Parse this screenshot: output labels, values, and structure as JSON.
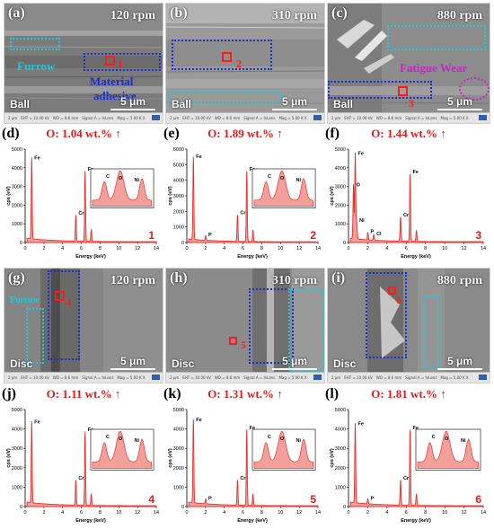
{
  "sem_top": [
    {
      "panel": "(a)",
      "rpm": "120 rpm",
      "bottom_word": "Ball",
      "scale": "5 μm",
      "marker": "1",
      "annotations": {
        "furrow": "Furrow",
        "adhesive_line1": "Material",
        "adhesive_line2": "adhesive"
      }
    },
    {
      "panel": "(b)",
      "rpm": "310 rpm",
      "bottom_word": "Ball",
      "scale": "5 μm",
      "marker": "2"
    },
    {
      "panel": "(c)",
      "rpm": "880 rpm",
      "bottom_word": "Ball",
      "scale": "5 μm",
      "marker": "3",
      "annotations": {
        "fatigue": "Fatigue Wear"
      }
    }
  ],
  "sem_bottom": [
    {
      "panel": "(g)",
      "rpm": "120 rpm",
      "bottom_word": "Disc",
      "scale": "5 μm",
      "marker": "4",
      "annotations": {
        "furrow": "Furrow"
      }
    },
    {
      "panel": "(h)",
      "rpm": "310 rpm",
      "bottom_word": "Disc",
      "scale": "5 μm",
      "marker": "5"
    },
    {
      "panel": "(i)",
      "rpm": "880 rpm",
      "bottom_word": "Disc",
      "scale": "5 μm",
      "marker": "6"
    }
  ],
  "infostrip": {
    "scale": "2 μm",
    "eht": "EHT = 10.00 kV",
    "wd": "WD = 8.6 mm",
    "signal": "Signal A = InLens",
    "mag": "Mag = 5.00 K X"
  },
  "colors": {
    "spectrum": "#e8302b",
    "spectrum_fill": "#f4a09a",
    "title": "#e11a1a",
    "blue_box": "#1b2fd0",
    "cyan_box": "#22c9d9",
    "magenta": "#c623c8",
    "marker": "#ff1a1a"
  },
  "chart_data": [
    {
      "type": "area",
      "panel": "(d)",
      "title": "O: 1.04 wt.% ↑",
      "ylabel": "cps (eV)",
      "xlabel": "Energy (keV)",
      "xlim": [
        0,
        14
      ],
      "ylim": [
        0,
        5000
      ],
      "number": "1",
      "peaks": [
        {
          "label": "Fe",
          "x": 0.7,
          "y": 4350
        },
        {
          "label": "Cr",
          "x": 5.41,
          "y": 1400
        },
        {
          "label": "Fe",
          "x": 6.4,
          "y": 3750
        },
        {
          "label": "",
          "x": 7.06,
          "y": 650
        }
      ],
      "inset_labels": [
        "C",
        "O",
        "Ni"
      ]
    },
    {
      "type": "area",
      "panel": "(e)",
      "title": "O: 1.89 wt.% ↑",
      "ylabel": "cps (eV)",
      "xlabel": "Energy (keV)",
      "xlim": [
        0,
        14
      ],
      "ylim": [
        0,
        6000
      ],
      "number": "2",
      "peaks": [
        {
          "label": "Fe",
          "x": 0.7,
          "y": 5300
        },
        {
          "label": "P",
          "x": 2.01,
          "y": 300
        },
        {
          "label": "Cr",
          "x": 5.41,
          "y": 1700
        },
        {
          "label": "Fe",
          "x": 6.4,
          "y": 4500
        },
        {
          "label": "",
          "x": 7.06,
          "y": 750
        }
      ],
      "inset_labels": [
        "C",
        "O",
        "Ni"
      ]
    },
    {
      "type": "area",
      "panel": "(f)",
      "title": "O: 1.44 wt.% ↑",
      "ylabel": "cps (eV)",
      "xlabel": "Energy (keV)",
      "xlim": [
        0,
        14
      ],
      "ylim": [
        0,
        5000
      ],
      "number": "3",
      "peaks": [
        {
          "label": "Fe",
          "x": 0.7,
          "y": 4600
        },
        {
          "label": "O",
          "x": 0.52,
          "y": 2900
        },
        {
          "label": "Ni",
          "x": 0.85,
          "y": 1000
        },
        {
          "label": "P",
          "x": 2.01,
          "y": 400
        },
        {
          "label": "Cl",
          "x": 2.62,
          "y": 300
        },
        {
          "label": "Cr",
          "x": 5.41,
          "y": 1300
        },
        {
          "label": "Fe",
          "x": 6.4,
          "y": 3600
        },
        {
          "label": "",
          "x": 7.06,
          "y": 600
        }
      ],
      "inset_labels": []
    },
    {
      "type": "area",
      "panel": "(j)",
      "title": "O: 1.11 wt.% ↑",
      "ylabel": "cps (eV)",
      "xlabel": "Energy (keV)",
      "xlim": [
        0,
        14
      ],
      "ylim": [
        0,
        5000
      ],
      "number": "4",
      "peaks": [
        {
          "label": "Fe",
          "x": 0.7,
          "y": 4200
        },
        {
          "label": "Cr",
          "x": 5.41,
          "y": 1300
        },
        {
          "label": "Fe",
          "x": 6.4,
          "y": 3800
        },
        {
          "label": "",
          "x": 7.06,
          "y": 600
        }
      ],
      "inset_labels": [
        "C",
        "O",
        "Ni"
      ]
    },
    {
      "type": "area",
      "panel": "(k)",
      "title": "O: 1.31 wt.% ↑",
      "ylabel": "cps (eV)",
      "xlabel": "Energy (keV)",
      "xlim": [
        0,
        14
      ],
      "ylim": [
        0,
        5000
      ],
      "number": "5",
      "peaks": [
        {
          "label": "Fe",
          "x": 0.7,
          "y": 4300
        },
        {
          "label": "P",
          "x": 2.01,
          "y": 250
        },
        {
          "label": "Cr",
          "x": 5.41,
          "y": 1300
        },
        {
          "label": "Fe",
          "x": 6.4,
          "y": 3900
        },
        {
          "label": "",
          "x": 7.06,
          "y": 600
        }
      ],
      "inset_labels": [
        "C",
        "O",
        "Ni"
      ]
    },
    {
      "type": "area",
      "panel": "(l)",
      "title": "O: 1.81 wt.% ↑",
      "ylabel": "cps (eV)",
      "xlabel": "Energy (keV)",
      "xlim": [
        0,
        14
      ],
      "ylim": [
        0,
        5000
      ],
      "number": "6",
      "peaks": [
        {
          "label": "Fe",
          "x": 0.7,
          "y": 4100
        },
        {
          "label": "P",
          "x": 2.01,
          "y": 250
        },
        {
          "label": "Cr",
          "x": 5.41,
          "y": 1300
        },
        {
          "label": "Fe",
          "x": 6.4,
          "y": 3900
        },
        {
          "label": "",
          "x": 7.06,
          "y": 600
        }
      ],
      "inset_labels": [
        "C",
        "O",
        "Ni"
      ]
    }
  ]
}
